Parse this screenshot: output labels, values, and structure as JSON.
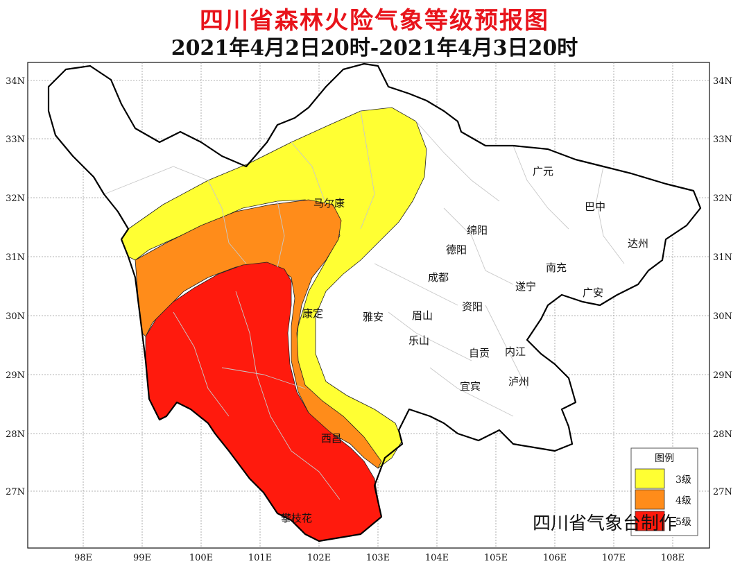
{
  "title": "四川省森林火险气象等级预报图",
  "subtitle": "2021年4月2日20时-2021年4月3日20时",
  "credit": "四川省气象台制作",
  "axes": {
    "x_ticks": [
      "98E",
      "99E",
      "100E",
      "101E",
      "102E",
      "103E",
      "104E",
      "105E",
      "106E",
      "107E",
      "108E"
    ],
    "y_ticks": [
      "34N",
      "33N",
      "32N",
      "31N",
      "30N",
      "29N",
      "28N",
      "27N"
    ]
  },
  "cities": [
    {
      "name": "广元"
    },
    {
      "name": "巴中"
    },
    {
      "name": "马尔康"
    },
    {
      "name": "绵阳"
    },
    {
      "name": "达州"
    },
    {
      "name": "德阳"
    },
    {
      "name": "南充"
    },
    {
      "name": "成都"
    },
    {
      "name": "遂宁"
    },
    {
      "name": "广安"
    },
    {
      "name": "康定"
    },
    {
      "name": "雅安"
    },
    {
      "name": "眉山"
    },
    {
      "name": "资阳"
    },
    {
      "name": "乐山"
    },
    {
      "name": "自贡"
    },
    {
      "name": "内江"
    },
    {
      "name": "宜宾"
    },
    {
      "name": "泸州"
    },
    {
      "name": "西昌"
    },
    {
      "name": "攀枝花"
    }
  ],
  "legend": {
    "title": "图例",
    "items": [
      {
        "label": "3级",
        "color": "#ffff33"
      },
      {
        "label": "4级",
        "color": "#ff8c1a"
      },
      {
        "label": "5级",
        "color": "#ff1a0d"
      }
    ]
  },
  "colors": {
    "title": "#e8141b",
    "border": "#000000",
    "inner_border": "#bdbdbd"
  }
}
